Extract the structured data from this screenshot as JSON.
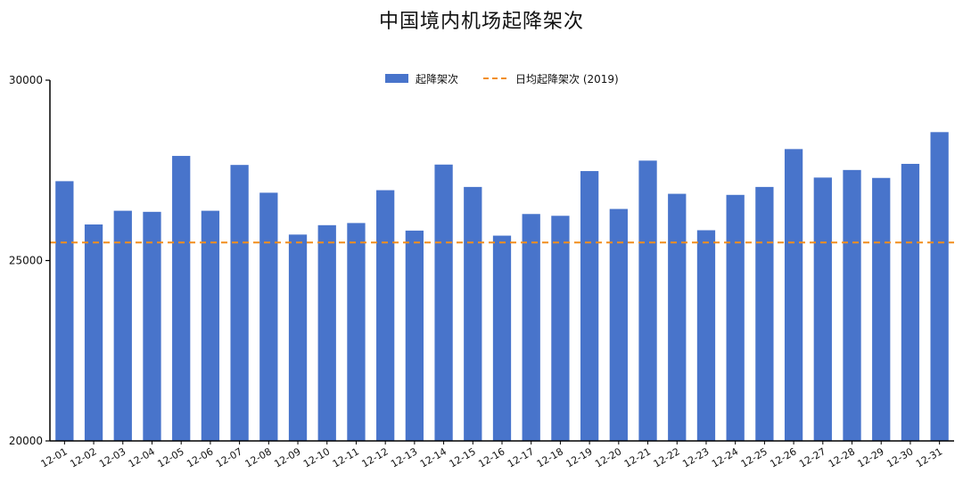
{
  "chart_data": {
    "type": "bar",
    "title": "中国境内机场起降架次",
    "xlabel": "",
    "ylabel": "",
    "ylim": [
      20000,
      30000
    ],
    "yticks": [
      20000,
      25000,
      30000
    ],
    "categories": [
      "12-01",
      "12-02",
      "12-03",
      "12-04",
      "12-05",
      "12-06",
      "12-07",
      "12-08",
      "12-09",
      "12-10",
      "12-11",
      "12-12",
      "12-13",
      "12-14",
      "12-15",
      "12-16",
      "12-17",
      "12-18",
      "12-19",
      "12-20",
      "12-21",
      "12-22",
      "12-23",
      "12-24",
      "12-25",
      "12-26",
      "12-27",
      "12-28",
      "12-29",
      "12-30",
      "12-31"
    ],
    "series": [
      {
        "name": "起降架次",
        "color": "#4874CB",
        "values": [
          27200,
          26000,
          26380,
          26350,
          27900,
          26380,
          27650,
          26880,
          25720,
          25980,
          26040,
          26950,
          25830,
          27660,
          27040,
          25690,
          26290,
          26240,
          27480,
          26430,
          27770,
          26850,
          25840,
          26820,
          27040,
          28090,
          27300,
          27510,
          27290,
          27680,
          28560
        ]
      }
    ],
    "reference_line": {
      "name": "日均起降架次 (2019)",
      "value": 25500,
      "color": "#F28E1C",
      "style": "dashed"
    },
    "legend": {
      "placement": "top-center"
    },
    "grid": false
  }
}
